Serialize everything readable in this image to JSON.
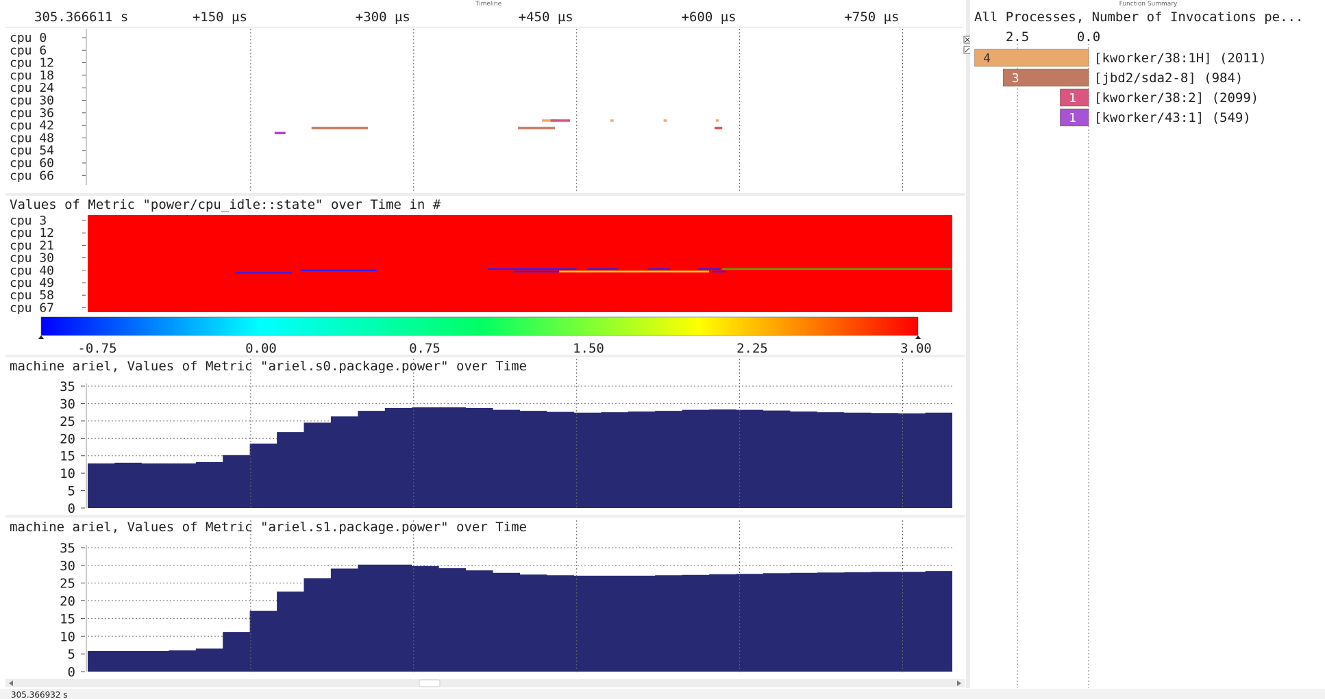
{
  "timeline": {
    "panel_title": "Timeline",
    "start_label": "305.366611 s",
    "ticks": [
      "+150 µs",
      "+300 µs",
      "+450 µs",
      "+600 µs",
      "+750 µs"
    ],
    "cpu_rows": [
      "cpu 0",
      "cpu 6",
      "cpu 12",
      "cpu 18",
      "cpu 24",
      "cpu 30",
      "cpu 36",
      "cpu 42",
      "cpu 48",
      "cpu 54",
      "cpu 60",
      "cpu 66"
    ],
    "events": [
      {
        "color": "#b142d8",
        "row": 7.6,
        "t0": 172,
        "t1": 182
      },
      {
        "color": "#c27a5e",
        "row": 7.2,
        "t0": 206,
        "t1": 258
      },
      {
        "color": "#c27a5e",
        "row": 7.2,
        "t0": 396,
        "t1": 430
      },
      {
        "color": "#f2a96b",
        "row": 6.6,
        "t0": 418,
        "t1": 432
      },
      {
        "color": "#d5567e",
        "row": 6.6,
        "t0": 426,
        "t1": 444
      },
      {
        "color": "#f2a96b",
        "row": 6.6,
        "t0": 481,
        "t1": 484
      },
      {
        "color": "#f2a96b",
        "row": 6.6,
        "t0": 530,
        "t1": 533
      },
      {
        "color": "#f2a96b",
        "row": 6.6,
        "t0": 578,
        "t1": 581
      },
      {
        "color": "#d94a4a",
        "row": 7.2,
        "t0": 577,
        "t1": 584
      }
    ]
  },
  "heatmap": {
    "title": "Values of Metric \"power/cpu_idle::state\" over Time in #",
    "cpu_rows": [
      "cpu 3",
      "cpu 12",
      "cpu 21",
      "cpu 30",
      "cpu 40",
      "cpu 49",
      "cpu 58",
      "cpu 67"
    ],
    "colorbar_ticks": [
      "-0.75",
      "0.00",
      "0.75",
      "1.50",
      "2.25",
      "3.00"
    ],
    "base_color": "#ff0000",
    "lines": [
      {
        "color": "#3a1df0",
        "row": 4.2,
        "t0": 136,
        "t1": 188
      },
      {
        "color": "#3a1df0",
        "row": 4.0,
        "t0": 196,
        "t1": 266
      },
      {
        "color": "#3a1df0",
        "row": 3.9,
        "t0": 368,
        "t1": 450
      },
      {
        "color": "#3a1df0",
        "row": 4.1,
        "t0": 392,
        "t1": 434
      },
      {
        "color": "#e6e600",
        "row": 4.1,
        "t0": 434,
        "t1": 572
      },
      {
        "color": "#3a1df0",
        "row": 3.9,
        "t0": 460,
        "t1": 488
      },
      {
        "color": "#3a1df0",
        "row": 3.9,
        "t0": 516,
        "t1": 536
      },
      {
        "color": "#3a1df0",
        "row": 3.9,
        "t0": 562,
        "t1": 582
      },
      {
        "color": "#3a1df0",
        "row": 4.1,
        "t0": 575,
        "t1": 587
      },
      {
        "color": "#5aa800",
        "row": 3.9,
        "t0": 584,
        "t1": 795
      }
    ]
  },
  "power_s0": {
    "title": "machine ariel, Values of Metric \"ariel.s0.package.power\" over Time",
    "y_ticks": [
      "35",
      "30",
      "25",
      "20",
      "15",
      "10",
      "5",
      "0"
    ],
    "color": "#272a73",
    "values": [
      12.8,
      13.0,
      12.8,
      12.8,
      13.2,
      15.2,
      18.5,
      21.8,
      24.5,
      26.3,
      27.9,
      28.7,
      28.9,
      28.9,
      28.7,
      28.2,
      27.9,
      27.6,
      27.4,
      27.5,
      27.7,
      27.9,
      28.2,
      28.3,
      28.2,
      28.0,
      27.7,
      27.5,
      27.4,
      27.3,
      27.2,
      27.4
    ]
  },
  "power_s1": {
    "title": "machine ariel, Values of Metric \"ariel.s1.package.power\" over Time",
    "y_ticks": [
      "35",
      "30",
      "25",
      "20",
      "15",
      "10",
      "5",
      "0"
    ],
    "color": "#272a73",
    "values": [
      5.8,
      5.8,
      5.8,
      6.0,
      6.5,
      11.2,
      17.2,
      22.6,
      26.4,
      29.1,
      30.2,
      30.2,
      29.8,
      29.2,
      28.6,
      27.9,
      27.4,
      27.2,
      27.1,
      27.1,
      27.1,
      27.2,
      27.3,
      27.5,
      27.6,
      27.8,
      27.9,
      28.0,
      28.1,
      28.2,
      28.2,
      28.4
    ]
  },
  "function_summary": {
    "panel_title": "Function Summary",
    "title": "All Processes, Number of Invocations pe...",
    "axis_ticks": [
      "2.5",
      "0.0"
    ],
    "bars": [
      {
        "count": "4",
        "label": "[kworker/38:1H] (2011)",
        "value": 4,
        "color": "#e9a96c"
      },
      {
        "count": "3",
        "label": "[jbd2/sda2-8] (984)",
        "value": 3,
        "color": "#c07a62"
      },
      {
        "count": "1",
        "label": "[kworker/38:2] (2099)",
        "value": 1,
        "color": "#d8567f"
      },
      {
        "count": "1",
        "label": "[kworker/43:1] (549)",
        "value": 1,
        "color": "#a753d6"
      }
    ]
  },
  "status": {
    "end_time": "305.366932 s"
  }
}
